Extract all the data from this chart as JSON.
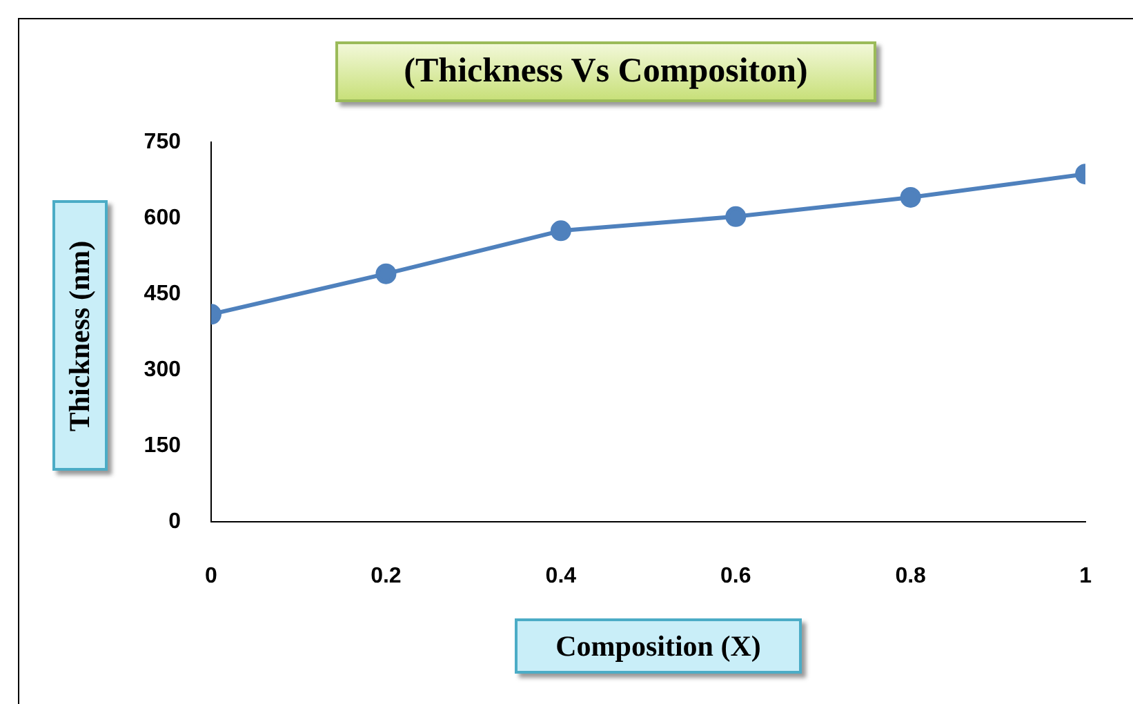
{
  "chart_data": {
    "type": "line",
    "title": "(Thickness Vs Compositon)",
    "xlabel": "Composition (X)",
    "ylabel": "Thickness (nm)",
    "x": [
      0,
      0.2,
      0.4,
      0.6,
      0.8,
      1
    ],
    "series": [
      {
        "color": "#4f81bd",
        "values": [
          410,
          490,
          575,
          603,
          641,
          687
        ]
      }
    ],
    "xlim": [
      0,
      1
    ],
    "xticks": [
      0,
      0.2,
      0.4,
      0.6,
      0.8,
      1
    ],
    "ylim": [
      0,
      750
    ],
    "yticks": [
      0,
      150,
      300,
      450,
      600,
      750
    ],
    "marker": "circle",
    "line_style": "solid",
    "grid": false
  }
}
